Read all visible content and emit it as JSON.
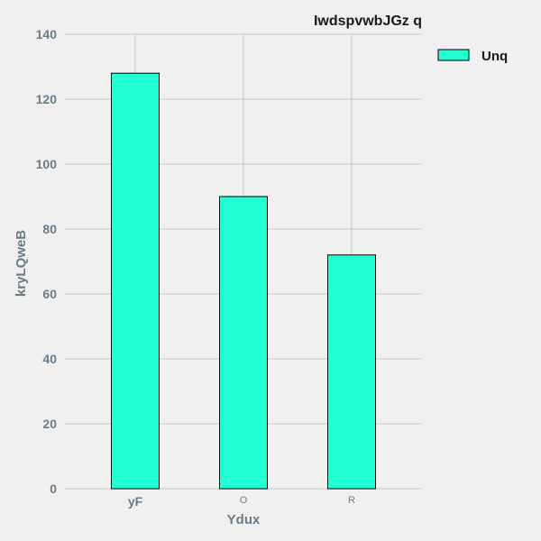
{
  "chart_data": {
    "type": "bar",
    "title": "IwdspvwbJGz q",
    "xlabel": "Ydux",
    "ylabel": "kryLQweB",
    "categories": [
      "yF",
      "O",
      "R"
    ],
    "series": [
      {
        "name": "Unq",
        "values": [
          128,
          90,
          72
        ],
        "color": "#22ffd2"
      }
    ],
    "ylim": [
      0,
      140
    ],
    "yticks": [
      "0",
      "20",
      "40",
      "60",
      "80",
      "100",
      "120",
      "140"
    ],
    "grid": true,
    "legend": "top-right"
  }
}
